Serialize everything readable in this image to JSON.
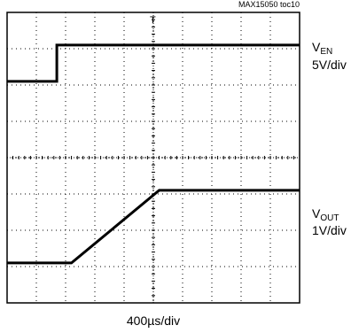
{
  "figure_id": "MAX15050 toc10",
  "chart_data": {
    "type": "line",
    "title": "",
    "xlabel": "400µs/div",
    "ylabel": "",
    "grid": true,
    "divisions": {
      "x": 10,
      "y": 8
    },
    "x_unit": "div",
    "y_unit": "div",
    "xlim": [
      0,
      10
    ],
    "ylim": [
      0,
      8
    ],
    "trigger_marker": "T",
    "series": [
      {
        "id": "ven",
        "label_main": "V",
        "label_sub": "EN",
        "scale": "5V/div",
        "x": [
          0,
          1.7,
          1.7,
          10
        ],
        "y": [
          6.1,
          6.1,
          7.1,
          7.1
        ]
      },
      {
        "id": "vout",
        "label_main": "V",
        "label_sub": "OUT",
        "scale": "1V/div",
        "x": [
          0,
          2.2,
          5.2,
          10
        ],
        "y": [
          1.1,
          1.1,
          3.1,
          3.1
        ]
      }
    ]
  }
}
